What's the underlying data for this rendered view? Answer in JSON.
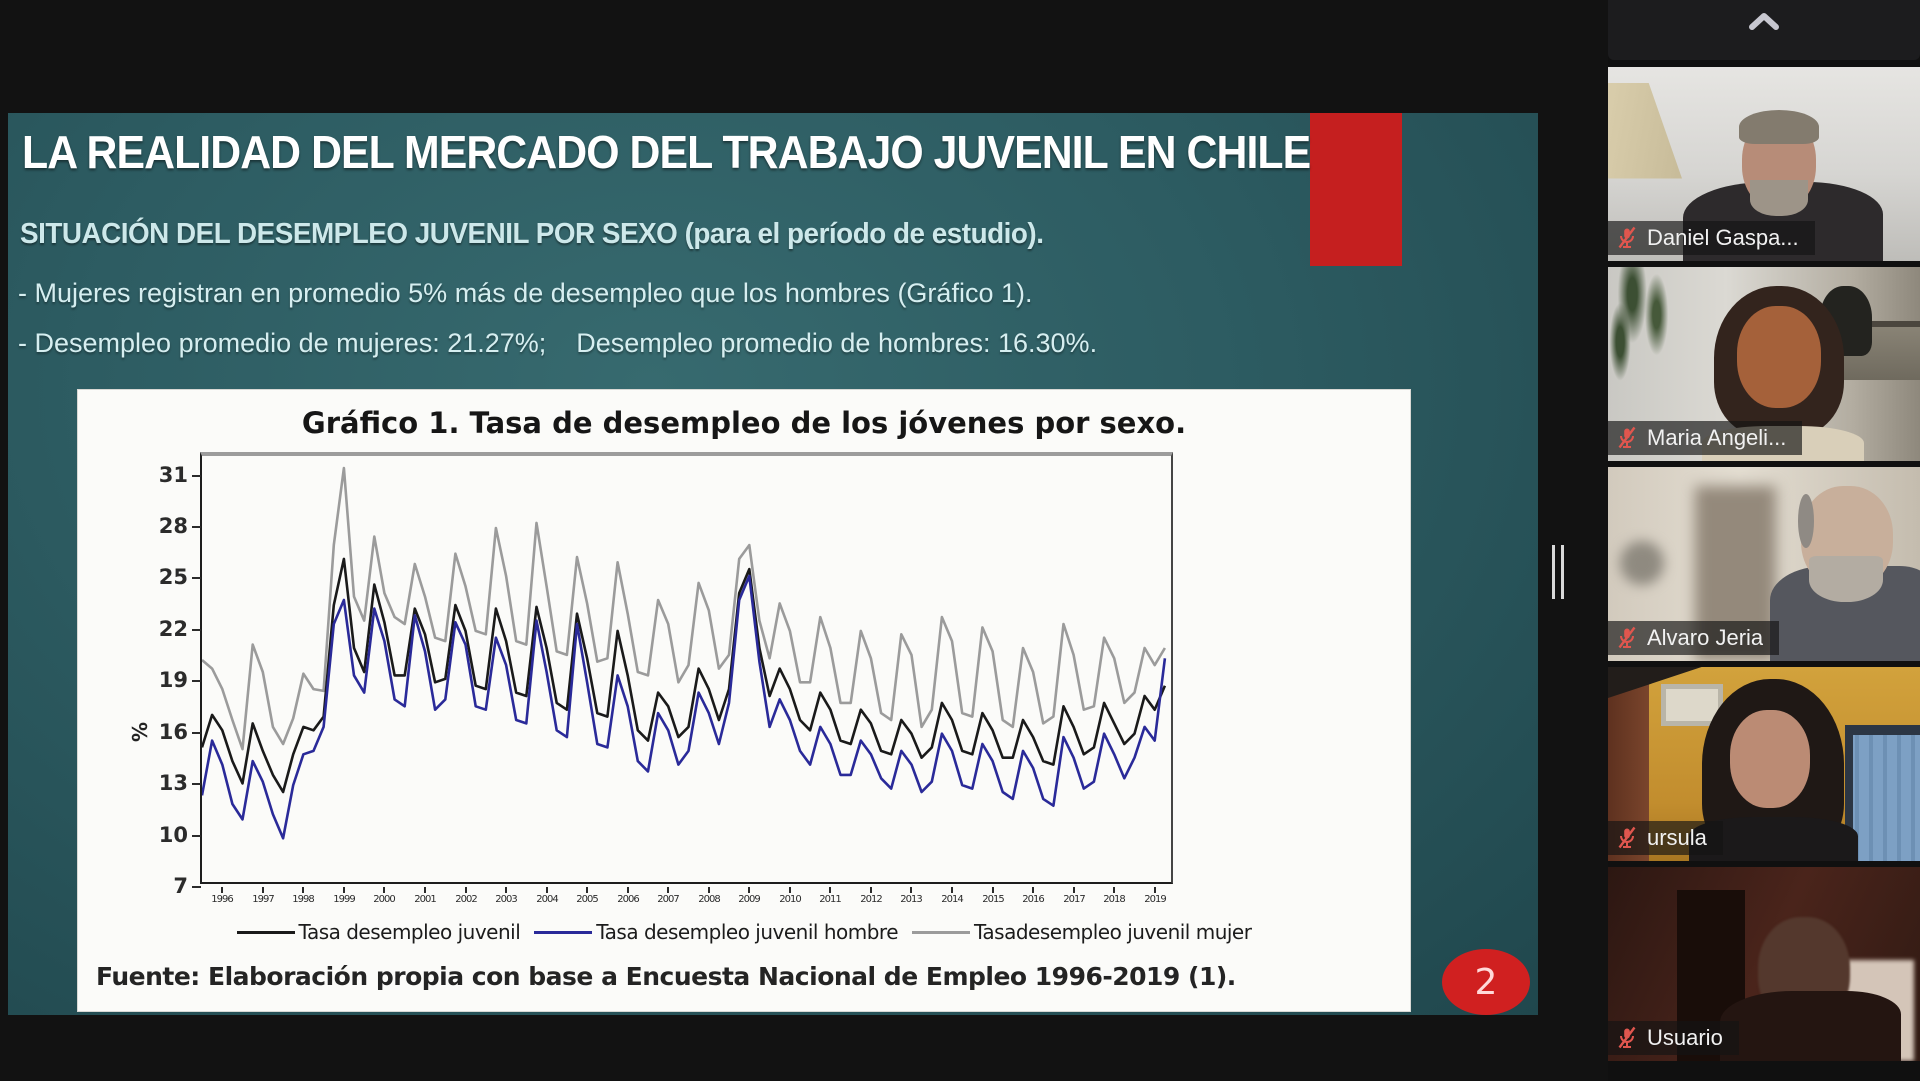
{
  "slide": {
    "title": "LA REALIDAD DEL MERCADO DEL TRABAJO JUVENIL EN CHILE",
    "subtitle": "SITUACIÓN DEL DESEMPLEO JUVENIL POR SEXO (para el período de estudio).",
    "bullets": [
      "- Mujeres registran en promedio 5% más de desempleo que los hombres (Gráfico 1).",
      "- Desempleo promedio de mujeres: 21.27%;    Desempleo promedio de hombres: 16.30%."
    ],
    "page_number": "2",
    "accent_color": "#c51f1f",
    "badge_color": "#d02020"
  },
  "chart_data": {
    "type": "line",
    "title": "Gráfico 1. Tasa de desempleo de los jóvenes por sexo.",
    "xlabel": "",
    "ylabel": "%",
    "source": "Fuente: Elaboración propia con base a Encuesta Nacional de Empleo 1996-2019 (1).",
    "x_start": 1996,
    "x_step": 0.25,
    "xlim": [
      1996,
      2020
    ],
    "ylim": [
      7,
      32.2
    ],
    "y_ticks": [
      31,
      28,
      25,
      22,
      19,
      16,
      13,
      10,
      7
    ],
    "x_tick_labels": [
      "1996",
      "1997",
      "1998",
      "1999",
      "2000",
      "2001",
      "2002",
      "2003",
      "2004",
      "2005",
      "2006",
      "2007",
      "2008",
      "2009",
      "2010",
      "2011",
      "2012",
      "2013",
      "2014",
      "2015",
      "2016",
      "2017",
      "2018",
      "2019"
    ],
    "grid": false,
    "legend_position": "bottom",
    "series": [
      {
        "name": "Tasa desempleo juvenil",
        "color": "#1a1a1a",
        "values": [
          15.2,
          17.1,
          16.2,
          14.4,
          13.1,
          16.6,
          15.0,
          13.6,
          12.6,
          14.8,
          16.4,
          16.2,
          17.0,
          23.5,
          26.2,
          21.0,
          19.6,
          24.7,
          22.5,
          19.4,
          19.4,
          23.3,
          21.8,
          19.0,
          19.2,
          23.5,
          22.0,
          18.8,
          18.6,
          23.3,
          21.4,
          18.4,
          18.2,
          23.4,
          21.0,
          17.8,
          17.4,
          23.0,
          20.4,
          17.2,
          17.0,
          22.0,
          19.4,
          16.2,
          15.6,
          18.4,
          17.6,
          15.8,
          16.4,
          19.8,
          18.6,
          16.8,
          18.6,
          24.2,
          25.6,
          21.0,
          18.2,
          19.8,
          18.6,
          16.8,
          16.2,
          18.4,
          17.4,
          15.6,
          15.4,
          17.4,
          16.6,
          15.0,
          14.8,
          16.8,
          16.0,
          14.6,
          15.2,
          17.8,
          16.8,
          15.0,
          14.8,
          17.2,
          16.2,
          14.6,
          14.6,
          16.8,
          15.8,
          14.4,
          14.2,
          17.6,
          16.4,
          14.8,
          15.2,
          17.8,
          16.6,
          15.4,
          16.0,
          18.2,
          17.4,
          18.8
        ]
      },
      {
        "name": "Tasa desempleo juvenil hombre",
        "color": "#2a2a99",
        "values": [
          12.4,
          15.6,
          14.2,
          11.9,
          11.0,
          14.4,
          13.2,
          11.3,
          9.9,
          13.0,
          14.8,
          15.0,
          16.4,
          22.4,
          23.8,
          19.4,
          18.4,
          23.3,
          21.4,
          18.0,
          17.6,
          22.9,
          20.8,
          17.4,
          18.0,
          22.5,
          21.2,
          17.6,
          17.4,
          21.6,
          20.0,
          16.8,
          16.6,
          22.6,
          19.6,
          16.2,
          15.8,
          22.4,
          19.0,
          15.4,
          15.2,
          19.4,
          17.6,
          14.4,
          13.8,
          17.2,
          16.2,
          14.2,
          15.0,
          18.4,
          17.2,
          15.4,
          17.8,
          23.8,
          25.2,
          20.2,
          16.4,
          18.0,
          16.8,
          15.0,
          14.2,
          16.4,
          15.4,
          13.6,
          13.6,
          15.6,
          14.8,
          13.4,
          12.8,
          15.0,
          14.2,
          12.6,
          13.2,
          16.0,
          15.0,
          13.0,
          12.8,
          15.4,
          14.4,
          12.6,
          12.2,
          15.0,
          14.0,
          12.2,
          11.8,
          15.8,
          14.6,
          12.8,
          13.2,
          16.0,
          14.8,
          13.4,
          14.6,
          16.4,
          15.6,
          20.4
        ]
      },
      {
        "name": "Tasadesempleo juvenil mujer",
        "color": "#9b9b9b",
        "values": [
          20.3,
          19.8,
          18.6,
          16.8,
          15.1,
          21.2,
          19.6,
          16.4,
          15.4,
          16.9,
          19.5,
          18.6,
          18.5,
          27.0,
          31.5,
          24.0,
          22.6,
          27.5,
          24.2,
          22.8,
          22.4,
          25.9,
          24.0,
          21.6,
          21.4,
          26.5,
          24.6,
          22.0,
          21.8,
          28.0,
          25.2,
          21.4,
          21.2,
          28.3,
          24.6,
          20.8,
          20.6,
          26.3,
          23.6,
          20.2,
          20.4,
          26.0,
          23.0,
          19.6,
          19.4,
          23.8,
          22.4,
          19.0,
          20.0,
          24.8,
          23.2,
          19.8,
          20.6,
          26.2,
          27.0,
          22.6,
          20.4,
          23.6,
          22.0,
          19.0,
          19.0,
          22.8,
          21.0,
          17.8,
          17.8,
          22.0,
          20.4,
          17.2,
          16.8,
          21.8,
          20.6,
          16.4,
          17.4,
          22.8,
          21.4,
          17.2,
          17.0,
          22.2,
          20.8,
          16.8,
          16.4,
          21.0,
          19.6,
          16.6,
          17.0,
          22.4,
          20.6,
          17.4,
          17.6,
          21.6,
          20.4,
          17.8,
          18.4,
          21.0,
          20.0,
          21.0
        ]
      }
    ]
  },
  "meeting": {
    "participants": [
      {
        "name": "Daniel Gaspa...",
        "muted": true
      },
      {
        "name": "Maria Angeli...",
        "muted": true
      },
      {
        "name": "Alvaro Jeria",
        "muted": true
      },
      {
        "name": "ursula",
        "muted": true
      },
      {
        "name": "Usuario",
        "muted": true
      }
    ],
    "mic_muted_color": "#e0564e"
  }
}
